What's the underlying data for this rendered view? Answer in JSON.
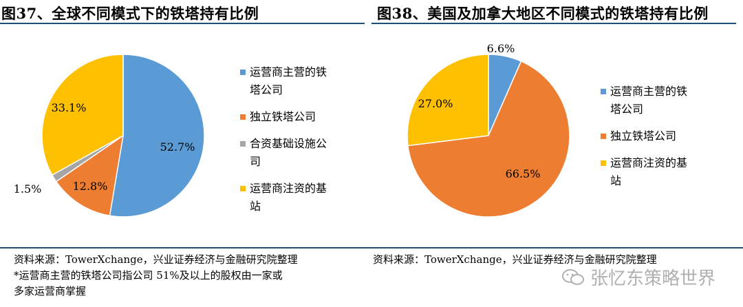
{
  "left_title": "图37、全球不同模式下的铁塔持有比例",
  "right_title": "图38、美国及加拿大地区不同模式的铁塔持有比例",
  "chart_data": [
    {
      "type": "pie",
      "title": "图37、全球不同模式下的铁塔持有比例",
      "categories": [
        "运营商主营的铁塔公司",
        "独立铁塔公司",
        "合资基础设施公司",
        "运营商注资的基站"
      ],
      "values": [
        52.7,
        12.8,
        1.5,
        33.1
      ],
      "labels": [
        "52.7%",
        "12.8%",
        "1.5%",
        "33.1%"
      ],
      "colors": [
        "#5b9bd5",
        "#ed7d31",
        "#a5a5a5",
        "#ffc000"
      ],
      "legend_lines": [
        [
          "运营商主营的铁",
          "塔公司"
        ],
        [
          "独立铁塔公司"
        ],
        [
          "合资基础设施公",
          "司"
        ],
        [
          "运营商注资的基",
          "站"
        ]
      ],
      "legend_position": "right"
    },
    {
      "type": "pie",
      "title": "图38、美国及加拿大地区不同模式的铁塔持有比例",
      "categories": [
        "运营商主营的铁塔公司",
        "独立铁塔公司",
        "运营商注资的基站"
      ],
      "values": [
        6.6,
        66.5,
        27.0
      ],
      "labels": [
        "6.6%",
        "66.5%",
        "27.0%"
      ],
      "colors": [
        "#5b9bd5",
        "#ed7d31",
        "#ffc000"
      ],
      "legend_lines": [
        [
          "运营商主营的铁",
          "塔公司"
        ],
        [
          "独立铁塔公司"
        ],
        [
          "运营商注资的基",
          "站"
        ]
      ],
      "legend_position": "right"
    }
  ],
  "source_left": {
    "line1": "资料来源：TowerXchange，兴业证券经济与金融研究院整理",
    "line2": "*运营商主营的铁塔公司指公司 51%及以上的股权由一家或",
    "line3": "多家运营商掌握"
  },
  "source_right": {
    "line1": "资料来源：TowerXchange，兴业证券经济与金融研究院整理"
  },
  "watermark": {
    "text": "张忆东策略世界",
    "icon": "wechat-icon"
  }
}
